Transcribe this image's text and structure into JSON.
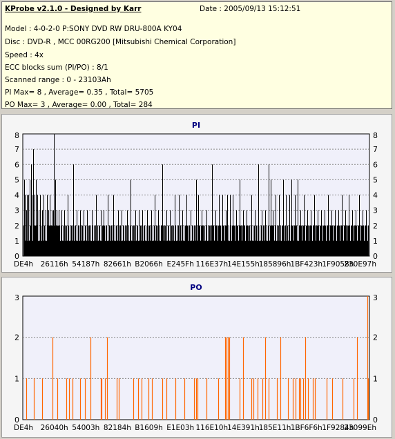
{
  "header": {
    "title": "KProbe v2.1.0 - Designed by Karr",
    "date": "Date : 2005/09/13 15:12:51",
    "lines": [
      "Model : 4-0-2-0 P:SONY     DVD RW DRU-800A  KY04",
      "Disc : DVD-R , MCC 00RG200  [Mitsubishi Chemical Corporation]",
      "Speed : 4x",
      "ECC blocks sum (PI/PO) : 8/1",
      "Scanned range : 0 - 23103Ah",
      "PI Max= 8 , Average= 0.35 , Total= 5705",
      "PO Max= 3 , Average= 0.00 , Total= 284"
    ]
  },
  "colors": {
    "pi_bar": "#000000",
    "po_bar": "#ff6600",
    "title": "#000080",
    "plot_bg": "#f0f0fa"
  },
  "chart_data": [
    {
      "type": "bar",
      "title": "PI",
      "ylim": [
        0,
        8
      ],
      "yticks": [
        "0",
        "1",
        "2",
        "3",
        "4",
        "5",
        "6",
        "7",
        "8"
      ],
      "xticks": [
        "DE4h",
        "26116h",
        "54187h",
        "82661h",
        "B2066h",
        "E245Fh",
        "116E37h",
        "14E155h",
        "185896h",
        "1BF423h",
        "1F9058h",
        "230E97h"
      ],
      "x_range": [
        "DE4h",
        "230E97h"
      ],
      "baseline_level": 1,
      "dense_level": 2,
      "spikes": [
        [
          0.3,
          5
        ],
        [
          0.6,
          4
        ],
        [
          0.9,
          3
        ],
        [
          1.2,
          4
        ],
        [
          1.6,
          4
        ],
        [
          1.9,
          5
        ],
        [
          2.3,
          6
        ],
        [
          2.6,
          4
        ],
        [
          3.0,
          7
        ],
        [
          3.4,
          4
        ],
        [
          3.8,
          5
        ],
        [
          4.2,
          4
        ],
        [
          4.5,
          3
        ],
        [
          5.0,
          4
        ],
        [
          5.5,
          3
        ],
        [
          6.0,
          4
        ],
        [
          6.5,
          3
        ],
        [
          7.0,
          4
        ],
        [
          7.4,
          3
        ],
        [
          7.8,
          4
        ],
        [
          8.3,
          3
        ],
        [
          8.7,
          3
        ],
        [
          9.0,
          8
        ],
        [
          9.4,
          5
        ],
        [
          9.8,
          3
        ],
        [
          10.3,
          3
        ],
        [
          11.2,
          3
        ],
        [
          12.0,
          3
        ],
        [
          13.0,
          4
        ],
        [
          14.5,
          6
        ],
        [
          15.5,
          3
        ],
        [
          16.5,
          3
        ],
        [
          17.5,
          3
        ],
        [
          18.5,
          3
        ],
        [
          20.0,
          3
        ],
        [
          21.2,
          4
        ],
        [
          22.5,
          3
        ],
        [
          23.3,
          3
        ],
        [
          24.5,
          4
        ],
        [
          26.0,
          4
        ],
        [
          27.5,
          3
        ],
        [
          28.5,
          3
        ],
        [
          30.0,
          3
        ],
        [
          31.0,
          5
        ],
        [
          32.5,
          3
        ],
        [
          33.5,
          3
        ],
        [
          34.5,
          3
        ],
        [
          35.8,
          3
        ],
        [
          37.0,
          3
        ],
        [
          38.0,
          4
        ],
        [
          39.0,
          3
        ],
        [
          40.3,
          6
        ],
        [
          41.5,
          3
        ],
        [
          42.5,
          3
        ],
        [
          43.8,
          4
        ],
        [
          45.0,
          4
        ],
        [
          46.0,
          3
        ],
        [
          47.2,
          4
        ],
        [
          48.5,
          3
        ],
        [
          50.0,
          5
        ],
        [
          50.5,
          4
        ],
        [
          51.5,
          3
        ],
        [
          53.0,
          3
        ],
        [
          54.5,
          6
        ],
        [
          55.5,
          3
        ],
        [
          56.5,
          4
        ],
        [
          57.5,
          4
        ],
        [
          58.5,
          3
        ],
        [
          59.0,
          4
        ],
        [
          59.8,
          4
        ],
        [
          60.5,
          4
        ],
        [
          61.5,
          3
        ],
        [
          62.5,
          5
        ],
        [
          63.5,
          3
        ],
        [
          64.5,
          3
        ],
        [
          66.0,
          4
        ],
        [
          67.0,
          3
        ],
        [
          68.0,
          6
        ],
        [
          69.0,
          3
        ],
        [
          70.0,
          3
        ],
        [
          71.0,
          6
        ],
        [
          71.5,
          5
        ],
        [
          72.2,
          3
        ],
        [
          73.0,
          4
        ],
        [
          74.0,
          4
        ],
        [
          75.0,
          5
        ],
        [
          75.8,
          4
        ],
        [
          76.8,
          4
        ],
        [
          77.5,
          5
        ],
        [
          78.5,
          4
        ],
        [
          79.2,
          5
        ],
        [
          80.0,
          3
        ],
        [
          81.0,
          4
        ],
        [
          82.0,
          3
        ],
        [
          83.0,
          3
        ],
        [
          84.0,
          4
        ],
        [
          85.0,
          3
        ],
        [
          86.0,
          3
        ],
        [
          87.0,
          3
        ],
        [
          88.0,
          4
        ],
        [
          89.0,
          3
        ],
        [
          90.0,
          3
        ],
        [
          91.0,
          3
        ],
        [
          92.0,
          4
        ],
        [
          93.0,
          3
        ],
        [
          94.0,
          4
        ],
        [
          95.0,
          3
        ],
        [
          96.0,
          3
        ],
        [
          97.0,
          4
        ],
        [
          98.0,
          3
        ],
        [
          99.0,
          3
        ]
      ]
    },
    {
      "type": "bar",
      "title": "PO",
      "ylim": [
        0,
        3
      ],
      "yticks": [
        "0",
        "1",
        "2",
        "3"
      ],
      "xticks": [
        "DE4h",
        "26040h",
        "54003h",
        "82184h",
        "B1609h",
        "E1E03h",
        "116E10h",
        "14E391h",
        "185E11h",
        "1BF6F6h",
        "1F9284h",
        "23099Eh"
      ],
      "x_range": [
        "DE4h",
        "23099Eh"
      ],
      "bars": [
        [
          0.9,
          1
        ],
        [
          3.2,
          1
        ],
        [
          5.5,
          1
        ],
        [
          8.6,
          2
        ],
        [
          10.0,
          1
        ],
        [
          12.6,
          1
        ],
        [
          13.4,
          1
        ],
        [
          14.4,
          1
        ],
        [
          16.6,
          1
        ],
        [
          18.0,
          1
        ],
        [
          19.6,
          2
        ],
        [
          22.5,
          1
        ],
        [
          22.8,
          1
        ],
        [
          23.8,
          1
        ],
        [
          24.3,
          2
        ],
        [
          27.0,
          1
        ],
        [
          27.6,
          1
        ],
        [
          31.8,
          1
        ],
        [
          33.2,
          1
        ],
        [
          34.3,
          1
        ],
        [
          36.2,
          1
        ],
        [
          37.2,
          1
        ],
        [
          40.2,
          1
        ],
        [
          41.4,
          1
        ],
        [
          44.0,
          1
        ],
        [
          46.7,
          1
        ],
        [
          49.4,
          1
        ],
        [
          50.0,
          1
        ],
        [
          50.4,
          1
        ],
        [
          53.0,
          1
        ],
        [
          56.4,
          1
        ],
        [
          58.4,
          2
        ],
        [
          58.8,
          2
        ],
        [
          59.2,
          2
        ],
        [
          59.6,
          2
        ],
        [
          62.6,
          1
        ],
        [
          63.5,
          2
        ],
        [
          66.0,
          1
        ],
        [
          66.6,
          1
        ],
        [
          67.8,
          1
        ],
        [
          69.1,
          1
        ],
        [
          69.9,
          2
        ],
        [
          71.0,
          1
        ],
        [
          73.4,
          1
        ],
        [
          74.4,
          2
        ],
        [
          76.4,
          1
        ],
        [
          77.8,
          1
        ],
        [
          78.7,
          1
        ],
        [
          79.6,
          1
        ],
        [
          80.1,
          1
        ],
        [
          80.8,
          1
        ],
        [
          81.4,
          2
        ],
        [
          82.3,
          1
        ],
        [
          83.6,
          1
        ],
        [
          84.3,
          1
        ],
        [
          87.6,
          1
        ],
        [
          89.3,
          1
        ],
        [
          92.2,
          1
        ],
        [
          95.5,
          1
        ],
        [
          96.5,
          2
        ],
        [
          99.4,
          3
        ],
        [
          99.7,
          1
        ]
      ]
    }
  ]
}
